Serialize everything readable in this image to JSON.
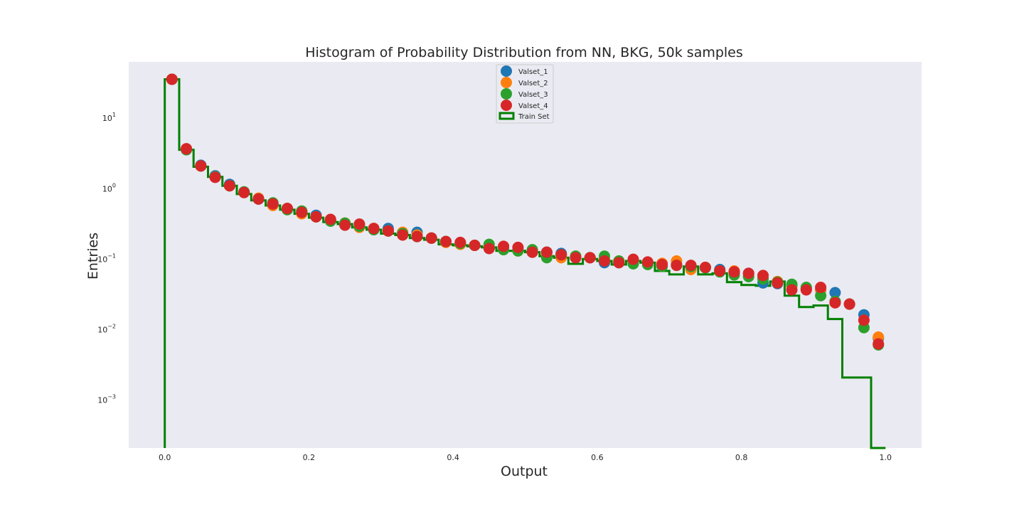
{
  "chart_data": {
    "type": "scatter",
    "title": "Histogram of Probability Distribution from NN, BKG, 50k samples",
    "xlabel": "Output",
    "ylabel": "Entries",
    "xlim": [
      -0.05,
      1.05
    ],
    "ylim": [
      0.0002,
      60
    ],
    "yscale": "log",
    "grid": false,
    "legend_position": "top-center",
    "background_color": "#eaeaf2",
    "x_ticks": [
      "0.0",
      "0.2",
      "0.4",
      "0.6",
      "0.8",
      "1.0"
    ],
    "y_ticks": [
      {
        "base": "10",
        "exp": "−3",
        "value": 0.001
      },
      {
        "base": "10",
        "exp": "−2",
        "value": 0.01
      },
      {
        "base": "10",
        "exp": "−1",
        "value": 0.1
      },
      {
        "base": "10",
        "exp": "0",
        "value": 1
      },
      {
        "base": "10",
        "exp": "1",
        "value": 10
      }
    ],
    "x": [
      0.01,
      0.03,
      0.05,
      0.07,
      0.09,
      0.11,
      0.13,
      0.15,
      0.17,
      0.19,
      0.21,
      0.23,
      0.25,
      0.27,
      0.29,
      0.31,
      0.33,
      0.35,
      0.37,
      0.39,
      0.41,
      0.43,
      0.45,
      0.47,
      0.49,
      0.51,
      0.53,
      0.55,
      0.57,
      0.59,
      0.61,
      0.63,
      0.65,
      0.67,
      0.69,
      0.71,
      0.73,
      0.75,
      0.77,
      0.79,
      0.81,
      0.83,
      0.85,
      0.87,
      0.89,
      0.91,
      0.93,
      0.95,
      0.97,
      0.99
    ],
    "series": [
      {
        "name": "Valset_1",
        "color": "#1f77b4",
        "values": [
          34,
          3.5,
          2.05,
          1.45,
          1.1,
          0.85,
          0.68,
          0.58,
          0.5,
          0.45,
          0.4,
          0.34,
          0.3,
          0.28,
          0.25,
          0.26,
          0.22,
          0.23,
          0.19,
          0.17,
          0.16,
          0.15,
          0.14,
          0.135,
          0.13,
          0.12,
          0.12,
          0.115,
          0.1,
          0.1,
          0.085,
          0.085,
          0.09,
          0.085,
          0.078,
          0.08,
          0.07,
          0.073,
          0.068,
          0.062,
          0.06,
          0.044,
          0.043,
          0.04,
          0.036,
          0.035,
          0.032,
          0.022,
          0.0155,
          0.0072
        ]
      },
      {
        "name": "Valset_2",
        "color": "#ff7f0e",
        "values": [
          34,
          3.5,
          2.0,
          1.4,
          1.05,
          0.85,
          0.7,
          0.55,
          0.5,
          0.42,
          0.38,
          0.34,
          0.31,
          0.27,
          0.26,
          0.24,
          0.23,
          0.21,
          0.19,
          0.165,
          0.155,
          0.15,
          0.14,
          0.135,
          0.125,
          0.12,
          0.11,
          0.1,
          0.105,
          0.1,
          0.095,
          0.09,
          0.09,
          0.085,
          0.083,
          0.09,
          0.068,
          0.073,
          0.065,
          0.065,
          0.055,
          0.052,
          0.046,
          0.04,
          0.036,
          0.035,
          0.023,
          0.022,
          0.013,
          0.0075
        ]
      },
      {
        "name": "Valset_3",
        "color": "#2ca02c",
        "values": [
          34,
          3.4,
          2.0,
          1.4,
          1.05,
          0.86,
          0.68,
          0.6,
          0.48,
          0.46,
          0.38,
          0.33,
          0.31,
          0.28,
          0.25,
          0.24,
          0.22,
          0.2,
          0.19,
          0.17,
          0.16,
          0.15,
          0.155,
          0.13,
          0.125,
          0.13,
          0.1,
          0.11,
          0.105,
          0.1,
          0.105,
          0.09,
          0.082,
          0.08,
          0.075,
          0.078,
          0.075,
          0.072,
          0.063,
          0.057,
          0.054,
          0.05,
          0.045,
          0.042,
          0.038,
          0.029,
          0.024,
          0.022,
          0.0102,
          0.0058
        ]
      },
      {
        "name": "Valset_4",
        "color": "#d62728",
        "values": [
          34,
          3.5,
          2.0,
          1.38,
          1.05,
          0.84,
          0.68,
          0.58,
          0.5,
          0.44,
          0.38,
          0.35,
          0.29,
          0.3,
          0.26,
          0.24,
          0.21,
          0.2,
          0.19,
          0.17,
          0.165,
          0.15,
          0.135,
          0.145,
          0.14,
          0.12,
          0.12,
          0.11,
          0.1,
          0.1,
          0.09,
          0.085,
          0.095,
          0.087,
          0.08,
          0.078,
          0.078,
          0.073,
          0.065,
          0.063,
          0.06,
          0.056,
          0.044,
          0.035,
          0.035,
          0.038,
          0.023,
          0.022,
          0.013,
          0.006
        ]
      }
    ],
    "step_series": {
      "name": "Train Set",
      "color": "#008000",
      "edges": [
        0,
        0.02,
        0.04,
        0.06,
        0.08,
        0.1,
        0.12,
        0.14,
        0.16,
        0.18,
        0.2,
        0.22,
        0.24,
        0.26,
        0.28,
        0.3,
        0.32,
        0.34,
        0.36,
        0.38,
        0.4,
        0.42,
        0.44,
        0.46,
        0.48,
        0.5,
        0.52,
        0.54,
        0.56,
        0.58,
        0.6,
        0.62,
        0.64,
        0.66,
        0.68,
        0.7,
        0.72,
        0.74,
        0.76,
        0.78,
        0.8,
        0.82,
        0.84,
        0.86,
        0.88,
        0.9,
        0.92,
        0.94,
        0.96,
        0.98,
        1.0
      ],
      "values": [
        34,
        3.4,
        1.95,
        1.4,
        1.05,
        0.8,
        0.65,
        0.55,
        0.48,
        0.42,
        0.37,
        0.32,
        0.3,
        0.27,
        0.25,
        0.22,
        0.21,
        0.19,
        0.18,
        0.155,
        0.15,
        0.145,
        0.14,
        0.125,
        0.125,
        0.12,
        0.105,
        0.1,
        0.082,
        0.096,
        0.09,
        0.08,
        0.09,
        0.085,
        0.065,
        0.058,
        0.075,
        0.058,
        0.06,
        0.045,
        0.041,
        0.04,
        0.046,
        0.029,
        0.02,
        0.021,
        0.0135,
        0.002,
        0.002,
        0.0002
      ]
    }
  }
}
